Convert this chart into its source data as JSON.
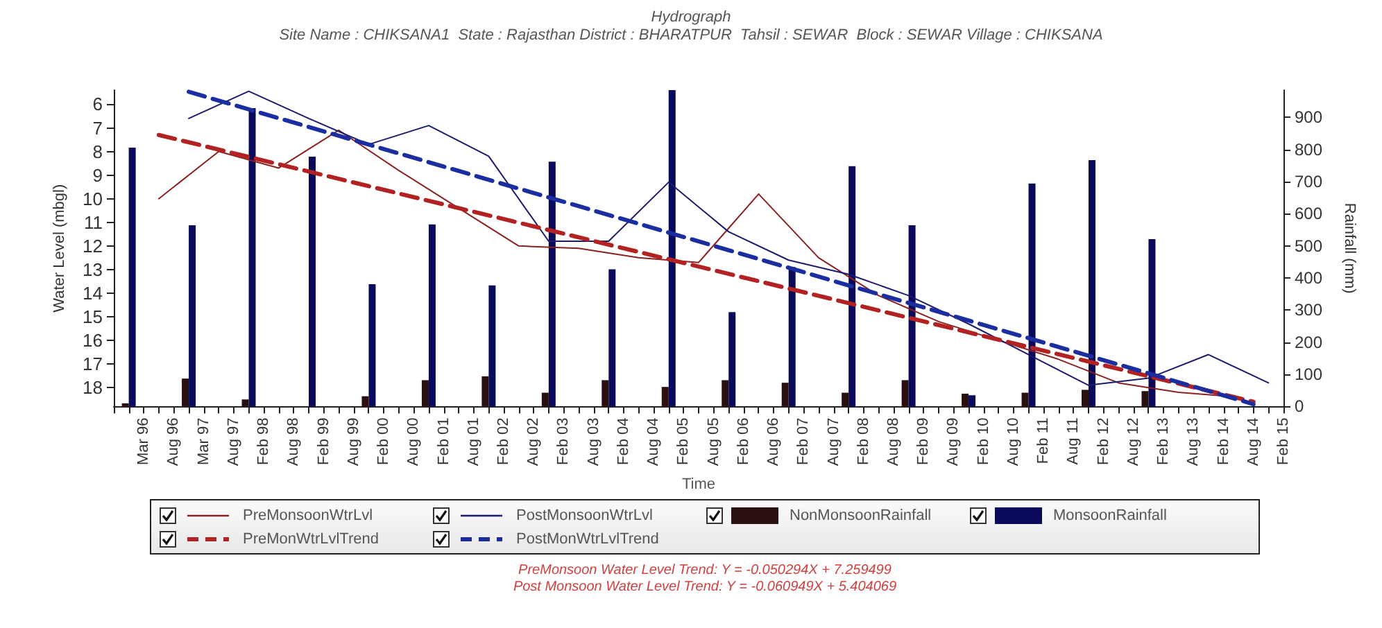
{
  "chart_data": {
    "type": "line",
    "title": "Hydrograph",
    "subtitle": "Site Name : CHIKSANA1  State : Rajasthan District : BHARATPUR  Tahsil : SEWAR  Block : SEWAR Village : CHIKSANA",
    "xlabel": "Time",
    "ylabel": "Water Level (mbgl)",
    "y2label": "Rainfall (mm)",
    "categories": [
      null,
      null,
      "Mar 96",
      null,
      "Aug 96",
      null,
      "Mar 97",
      null,
      "Aug 97",
      null,
      "Feb 98",
      null,
      "Aug 98",
      null,
      "Feb 99",
      null,
      "Aug 99",
      null,
      "Feb 00",
      null,
      "Aug 00",
      null,
      "Feb 01",
      null,
      "Aug 01",
      null,
      "Feb 02",
      null,
      "Aug 02",
      null,
      "Feb 03",
      null,
      "Aug 03",
      null,
      "Feb 04",
      null,
      "Aug 04",
      null,
      "Feb 05",
      null,
      "Aug 05",
      null,
      "Feb 06",
      null,
      "Aug 06",
      null,
      "Feb 07",
      null,
      "Aug 07",
      null,
      "Feb 08",
      null,
      "Aug 08",
      null,
      "Feb 09",
      null,
      "Aug 09",
      null,
      "Feb 10",
      null,
      "Aug 10",
      null,
      "Feb 11",
      null,
      "Aug 11",
      null,
      "Feb 12",
      null,
      "Aug 12",
      null,
      "Feb 13",
      null,
      "Aug 13",
      null,
      "Feb 14",
      null,
      "Aug 14",
      null,
      "Feb 15"
    ],
    "ylim": [
      18.8,
      5.4
    ],
    "yticks": [
      6,
      7,
      8,
      9,
      10,
      11,
      12,
      13,
      14,
      15,
      16,
      17,
      18
    ],
    "y2lim": [
      0,
      985
    ],
    "y2ticks": [
      0,
      100,
      200,
      300,
      400,
      500,
      600,
      700,
      800,
      900
    ],
    "grid": false,
    "legend": "bottom",
    "marker": "none",
    "series": [
      {
        "name": "PreMonsoonWtrLvl",
        "color": "#8b2020",
        "values": [
          null,
          null,
          null,
          10.0,
          null,
          null,
          null,
          8.0,
          null,
          null,
          null,
          8.7,
          null,
          null,
          null,
          7.1,
          null,
          null,
          null,
          8.8,
          null,
          null,
          null,
          10.4,
          null,
          null,
          null,
          12.0,
          null,
          null,
          null,
          12.1,
          null,
          null,
          null,
          12.5,
          null,
          null,
          null,
          12.7,
          null,
          null,
          null,
          9.8,
          null,
          null,
          null,
          12.5,
          null,
          null,
          null,
          14.1,
          null,
          null,
          null,
          15.2,
          null,
          null,
          null,
          16.0,
          null,
          null,
          null,
          16.8,
          null,
          null,
          null,
          17.8,
          null,
          null,
          null,
          18.2,
          null,
          null,
          null,
          18.4,
          null,
          null,
          null
        ]
      },
      {
        "name": "PostMonsoonWtrLvl",
        "color": "#1a1a6e",
        "values": [
          null,
          null,
          null,
          null,
          null,
          6.6,
          null,
          null,
          null,
          5.45,
          null,
          null,
          null,
          6.6,
          null,
          null,
          null,
          7.7,
          null,
          null,
          null,
          6.9,
          null,
          null,
          null,
          8.2,
          null,
          null,
          null,
          11.8,
          null,
          null,
          null,
          11.8,
          null,
          null,
          null,
          9.3,
          null,
          null,
          null,
          11.4,
          null,
          null,
          null,
          12.6,
          null,
          null,
          null,
          13.2,
          null,
          null,
          null,
          14.1,
          null,
          null,
          null,
          15.3,
          null,
          null,
          null,
          16.6,
          null,
          null,
          null,
          17.9,
          null,
          null,
          null,
          17.6,
          null,
          null,
          null,
          16.6,
          null,
          null,
          null,
          17.8,
          null
        ]
      },
      {
        "name": "NonMonsoonRainfall",
        "type": "bar",
        "axis": "y2",
        "color": "#2a1010",
        "values": [
          null,
          10,
          null,
          null,
          null,
          87,
          null,
          null,
          null,
          22,
          null,
          null,
          null,
          null,
          null,
          null,
          null,
          32,
          null,
          null,
          null,
          82,
          null,
          null,
          null,
          94,
          null,
          null,
          null,
          43,
          null,
          null,
          null,
          82,
          null,
          null,
          null,
          61,
          null,
          null,
          null,
          82,
          null,
          null,
          null,
          74,
          null,
          null,
          null,
          43,
          null,
          null,
          null,
          82,
          null,
          null,
          null,
          40,
          null,
          null,
          null,
          43,
          null,
          null,
          null,
          52,
          null,
          null,
          null,
          48,
          null,
          null,
          null,
          null,
          null,
          null,
          null,
          null,
          null
        ]
      },
      {
        "name": "MonsoonRainfall",
        "type": "bar",
        "axis": "y2",
        "color": "#0a0a5a",
        "values": [
          null,
          806,
          null,
          null,
          null,
          564,
          null,
          null,
          null,
          929,
          null,
          null,
          null,
          778,
          null,
          null,
          null,
          381,
          null,
          null,
          null,
          567,
          null,
          null,
          null,
          377,
          null,
          null,
          null,
          762,
          null,
          null,
          null,
          427,
          null,
          null,
          null,
          985,
          null,
          null,
          null,
          294,
          null,
          null,
          null,
          434,
          null,
          null,
          null,
          748,
          null,
          null,
          null,
          564,
          null,
          null,
          null,
          35,
          null,
          null,
          null,
          694,
          null,
          null,
          null,
          767,
          null,
          null,
          null,
          521,
          null,
          null,
          null,
          null,
          null,
          null,
          null,
          null,
          null
        ]
      },
      {
        "name": "PreMonWtrLvlTrend",
        "line_style": "dashed",
        "color": "#b22222",
        "values": [
          null,
          null,
          null,
          7.3,
          null,
          null,
          null,
          null,
          null,
          null,
          null,
          null,
          null,
          null,
          null,
          null,
          null,
          null,
          null,
          null,
          null,
          null,
          null,
          null,
          null,
          null,
          null,
          null,
          null,
          null,
          null,
          null,
          null,
          null,
          null,
          null,
          null,
          null,
          null,
          null,
          null,
          null,
          null,
          null,
          null,
          null,
          null,
          null,
          null,
          null,
          null,
          null,
          null,
          null,
          null,
          null,
          null,
          null,
          null,
          null,
          null,
          null,
          null,
          null,
          null,
          null,
          null,
          null,
          null,
          null,
          null,
          null,
          null,
          null,
          null,
          null,
          18.6,
          null,
          null
        ]
      },
      {
        "name": "PostMonWtrLvlTrend",
        "line_style": "dashed",
        "color": "#1a2ea0",
        "values": [
          null,
          null,
          null,
          null,
          null,
          5.47,
          null,
          null,
          null,
          null,
          null,
          null,
          null,
          null,
          null,
          null,
          null,
          null,
          null,
          null,
          null,
          null,
          null,
          null,
          null,
          null,
          null,
          null,
          null,
          null,
          null,
          null,
          null,
          null,
          null,
          null,
          null,
          null,
          null,
          null,
          null,
          null,
          null,
          null,
          null,
          null,
          null,
          null,
          null,
          null,
          null,
          null,
          null,
          null,
          null,
          null,
          null,
          null,
          null,
          null,
          null,
          null,
          null,
          null,
          null,
          null,
          null,
          null,
          null,
          null,
          null,
          null,
          null,
          null,
          null,
          null,
          18.7,
          null,
          null
        ]
      }
    ],
    "annotations": [
      "PreMonsoon Water Level Trend: Y = -0.050294X + 7.259499",
      "Post Monsoon Water Level Trend: Y = -0.060949X + 5.404069"
    ]
  }
}
